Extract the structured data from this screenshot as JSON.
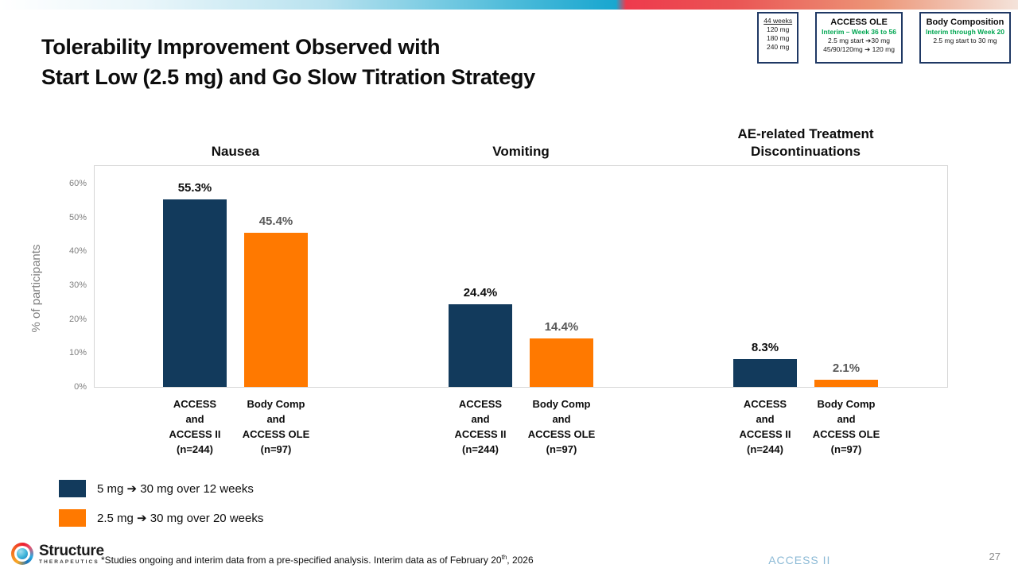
{
  "slide": {
    "title_line1": "Tolerability Improvement Observed with",
    "title_line2": "Start Low (2.5 mg) and Go Slow Titration Strategy",
    "footnote_pre": "*Studies ongoing and interim data from a pre-specified analysis. Interim data as of February 20",
    "footnote_sup": "th",
    "footnote_post": ", 2026",
    "page_number": "27"
  },
  "logo": {
    "name": "Structure",
    "subname": "THERAPEUTICS"
  },
  "study_boxes": [
    {
      "title": "ACCESS II",
      "title_style": "logo",
      "lines": [
        {
          "t": "44 weeks",
          "s": "underline"
        },
        {
          "t": "120 mg",
          "s": ""
        },
        {
          "t": "180 mg",
          "s": ""
        },
        {
          "t": "240 mg",
          "s": ""
        }
      ]
    },
    {
      "title": "ACCESS OLE",
      "title_style": "bold",
      "lines": [
        {
          "t": "Interim – Week 36 to 56",
          "s": "green"
        },
        {
          "t": "2.5 mg start ➔30 mg",
          "s": ""
        },
        {
          "t": "45/90/120mg ➔ 120 mg",
          "s": ""
        }
      ]
    },
    {
      "title": "Body Composition",
      "title_style": "bold",
      "lines": [
        {
          "t": "Interim through Week 20",
          "s": "green"
        },
        {
          "t": "2.5 mg start to 30 mg",
          "s": ""
        }
      ]
    }
  ],
  "legend": [
    {
      "color": "#123A5C",
      "label": "5 mg ➔ 30 mg over 12 weeks"
    },
    {
      "color": "#FF7900",
      "label": "2.5 mg ➔ 30 mg over 20 weeks"
    }
  ],
  "chart_data": {
    "type": "bar",
    "title": "",
    "ylabel": "% of participants",
    "ylim": [
      0,
      60
    ],
    "yticks": [
      0,
      10,
      20,
      30,
      40,
      50,
      60
    ],
    "ytick_suffix": "%",
    "grid": false,
    "legend_position": "bottom-left",
    "groups": [
      {
        "title_lines": [
          "Nausea"
        ]
      },
      {
        "title_lines": [
          "Vomiting"
        ]
      },
      {
        "title_lines": [
          "AE-related Treatment",
          "Discontinuations"
        ]
      }
    ],
    "series": [
      {
        "name": "5 mg ➔ 30 mg over 12 weeks",
        "color": "#123A5C",
        "value_label_color": "#0d0d0d",
        "values": [
          55.3,
          24.4,
          8.3
        ],
        "value_labels": [
          "55.3%",
          "24.4%",
          "8.3%"
        ],
        "xlabel_lines": [
          "ACCESS",
          "and",
          "ACCESS II",
          "(n=244)"
        ]
      },
      {
        "name": "2.5 mg ➔ 30 mg over 20 weeks",
        "color": "#FF7900",
        "value_label_color": "#595959",
        "values": [
          45.4,
          14.4,
          2.1
        ],
        "value_labels": [
          "45.4%",
          "14.4%",
          "2.1%"
        ],
        "xlabel_lines": [
          "Body Comp",
          "and",
          "ACCESS OLE",
          "(n=97)"
        ]
      }
    ]
  }
}
